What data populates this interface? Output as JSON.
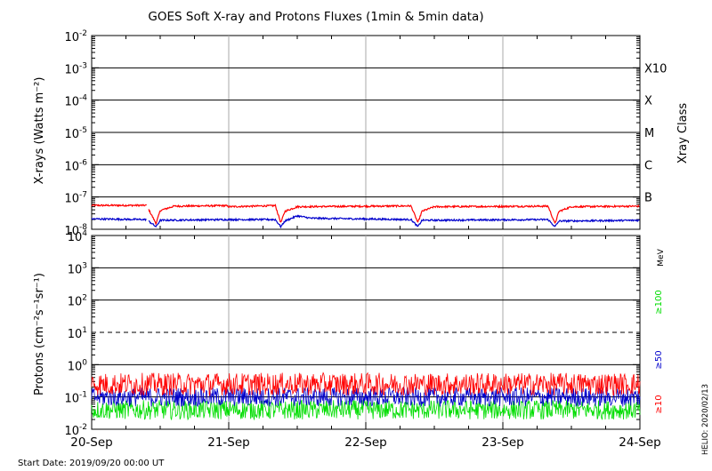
{
  "title": "GOES Soft X-ray and Protons Fluxes   (1min & 5min data)",
  "start_date": "Start Date: 2019/09/20 00:00 UT",
  "credit": "HELIO: 2020/02/13",
  "colors": {
    "xray_long": "#ff0000",
    "xray_short": "#0000cc",
    "proton_10": "#ff0000",
    "proton_50": "#0000cc",
    "proton_100": "#00dd00",
    "grid": "#000000",
    "day_lines": "#aaaaaa"
  },
  "chart_data": [
    {
      "type": "line",
      "panel": "xray",
      "ylabel": "X-rays (Watts m⁻²)",
      "yscale": "log",
      "ylim": [
        1e-08,
        0.01
      ],
      "yticks": [
        {
          "exp": "-2",
          "value": 0.01
        },
        {
          "exp": "-3",
          "value": 0.001
        },
        {
          "exp": "-4",
          "value": 0.0001
        },
        {
          "exp": "-5",
          "value": 1e-05
        },
        {
          "exp": "-6",
          "value": 1e-06
        },
        {
          "exp": "-7",
          "value": 1e-07
        },
        {
          "exp": "-8",
          "value": 1e-08
        }
      ],
      "right_axis_label": "Xray Class",
      "classes": [
        {
          "label": "X10",
          "value": 0.001
        },
        {
          "label": "X",
          "value": 0.0001
        },
        {
          "label": "M",
          "value": 1e-05
        },
        {
          "label": "C",
          "value": 1e-06
        },
        {
          "label": "B",
          "value": 1e-07
        }
      ],
      "xlim": [
        "2019-09-20",
        "2019-09-24"
      ],
      "xticks": [
        "20-Sep",
        "21-Sep",
        "22-Sep",
        "23-Sep",
        "24-Sep"
      ],
      "gaps_days": [
        [
          0.4,
          0.47
        ],
        [
          0.98,
          1.0
        ],
        [
          1.34,
          1.38
        ],
        [
          2.33,
          2.38
        ],
        [
          3.33,
          3.38
        ]
      ],
      "series": [
        {
          "key": "long",
          "color": "xray_long",
          "points": [
            [
              0.0,
              5.5e-08
            ],
            [
              0.4,
              5.5e-08
            ],
            [
              0.47,
              1.5e-08
            ],
            [
              0.5,
              3.8e-08
            ],
            [
              0.6,
              5.2e-08
            ],
            [
              0.98,
              5.4e-08
            ],
            [
              1.0,
              5e-08
            ],
            [
              1.34,
              5.4e-08
            ],
            [
              1.38,
              1.6e-08
            ],
            [
              1.41,
              3.6e-08
            ],
            [
              1.5,
              5e-08
            ],
            [
              2.33,
              5.3e-08
            ],
            [
              2.38,
              1.6e-08
            ],
            [
              2.41,
              3.6e-08
            ],
            [
              2.5,
              5e-08
            ],
            [
              3.33,
              5.2e-08
            ],
            [
              3.38,
              1.5e-08
            ],
            [
              3.41,
              3.6e-08
            ],
            [
              3.5,
              5e-08
            ],
            [
              4.0,
              5.2e-08
            ]
          ]
        },
        {
          "key": "short",
          "color": "xray_short",
          "points": [
            [
              0.0,
              2.1e-08
            ],
            [
              0.4,
              2e-08
            ],
            [
              0.47,
              1.2e-08
            ],
            [
              0.5,
              1.9e-08
            ],
            [
              0.98,
              2e-08
            ],
            [
              1.34,
              2e-08
            ],
            [
              1.38,
              1.2e-08
            ],
            [
              1.41,
              1.8e-08
            ],
            [
              1.5,
              2.6e-08
            ],
            [
              1.6,
              2.2e-08
            ],
            [
              2.33,
              2e-08
            ],
            [
              2.38,
              1.2e-08
            ],
            [
              2.41,
              1.9e-08
            ],
            [
              3.33,
              2e-08
            ],
            [
              3.38,
              1.2e-08
            ],
            [
              3.41,
              1.8e-08
            ],
            [
              4.0,
              1.9e-08
            ]
          ]
        }
      ]
    },
    {
      "type": "line",
      "panel": "protons",
      "ylabel": "Protons (cm⁻²s⁻¹sr⁻¹)",
      "yscale": "log",
      "ylim": [
        0.01,
        10000
      ],
      "yticks": [
        {
          "base": "10",
          "exp": "4",
          "value": 10000
        },
        {
          "base": "10",
          "exp": "3",
          "value": 1000
        },
        {
          "base": "10",
          "exp": "2",
          "value": 100
        },
        {
          "base": "10",
          "exp": "1",
          "value": 10
        },
        {
          "base": "10",
          "exp": "0",
          "value": 1
        },
        {
          "base": "10",
          "exp": "-1",
          "value": 0.1
        },
        {
          "base": "10",
          "exp": "-2",
          "value": 0.01
        }
      ],
      "threshold": 10,
      "energy_unit": "MeV",
      "xlim": [
        "2019-09-20",
        "2019-09-24"
      ],
      "xticks": [
        "20-Sep",
        "21-Sep",
        "22-Sep",
        "23-Sep",
        "24-Sep"
      ],
      "series": [
        {
          "name": "≥10",
          "color": "proton_10",
          "baseline": 0.25,
          "spread": 0.35
        },
        {
          "name": "≥50",
          "color": "proton_50",
          "baseline": 0.1,
          "spread": 0.3
        },
        {
          "name": "≥100",
          "color": "proton_100",
          "baseline": 0.04,
          "spread": 0.3
        }
      ]
    }
  ]
}
